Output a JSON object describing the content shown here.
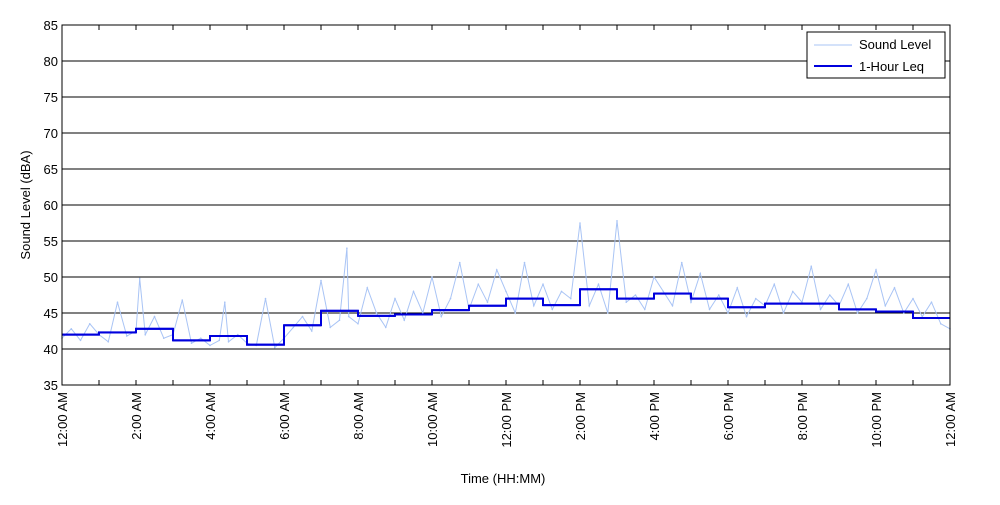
{
  "chart_data": {
    "type": "line",
    "title": "",
    "xlabel": "Time (HH:MM)",
    "ylabel": "Sound Level (dBA)",
    "ylim": [
      35,
      85
    ],
    "yticks": [
      35,
      40,
      45,
      50,
      55,
      60,
      65,
      70,
      75,
      80,
      85
    ],
    "xlim_hours": [
      0,
      24
    ],
    "xtick_labels": [
      "12:00 AM",
      "2:00 AM",
      "4:00 AM",
      "6:00 AM",
      "8:00 AM",
      "10:00 AM",
      "12:00 PM",
      "2:00 PM",
      "4:00 PM",
      "6:00 PM",
      "8:00 PM",
      "10:00 PM",
      "12:00 AM"
    ],
    "grid": "horizontal",
    "legend_position": "top-right",
    "series": [
      {
        "name": "Sound Level",
        "color": "#a9c4f5",
        "style": "thin-line",
        "x_hours": [
          0,
          0.25,
          0.5,
          0.75,
          1,
          1.25,
          1.5,
          1.75,
          2,
          2.1,
          2.25,
          2.5,
          2.75,
          3,
          3.25,
          3.5,
          3.75,
          4,
          4.25,
          4.4,
          4.5,
          4.75,
          5,
          5.25,
          5.5,
          5.75,
          6,
          6.25,
          6.5,
          6.75,
          7,
          7.25,
          7.5,
          7.7,
          7.75,
          8,
          8.25,
          8.5,
          8.75,
          9,
          9.25,
          9.5,
          9.75,
          10,
          10.25,
          10.5,
          10.75,
          11,
          11.25,
          11.5,
          11.75,
          12,
          12.25,
          12.5,
          12.75,
          13,
          13.25,
          13.5,
          13.75,
          14,
          14.25,
          14.5,
          14.75,
          15,
          15.25,
          15.5,
          15.75,
          16,
          16.25,
          16.5,
          16.75,
          17,
          17.25,
          17.5,
          17.75,
          18,
          18.25,
          18.5,
          18.75,
          19,
          19.25,
          19.5,
          19.75,
          20,
          20.25,
          20.5,
          20.75,
          21,
          21.25,
          21.5,
          21.75,
          22,
          22.25,
          22.5,
          22.75,
          23,
          23.25,
          23.5,
          23.75,
          24
        ],
        "values": [
          41.5,
          42.8,
          41.2,
          43.5,
          42.0,
          41.0,
          46.5,
          41.8,
          42.5,
          49.8,
          42.0,
          44.5,
          41.5,
          42.0,
          46.8,
          40.8,
          41.5,
          40.5,
          41.2,
          46.5,
          41.0,
          42.0,
          40.8,
          40.5,
          47.0,
          40.2,
          41.5,
          43.0,
          44.5,
          42.5,
          49.5,
          43.0,
          44.0,
          54.0,
          44.5,
          43.5,
          48.5,
          45.0,
          43.0,
          47.0,
          44.0,
          48.0,
          45.0,
          50.0,
          44.5,
          47.0,
          52.0,
          45.5,
          49.0,
          46.5,
          51.0,
          48.0,
          45.0,
          52.0,
          46.0,
          49.0,
          45.5,
          48.0,
          47.0,
          57.5,
          46.0,
          49.0,
          45.0,
          57.8,
          46.5,
          47.5,
          45.5,
          50.0,
          48.0,
          46.0,
          52.0,
          46.5,
          50.5,
          45.5,
          47.5,
          45.0,
          48.5,
          44.5,
          47.0,
          46.0,
          49.0,
          45.0,
          48.0,
          46.5,
          51.5,
          45.5,
          47.5,
          46.0,
          49.0,
          45.0,
          47.0,
          51.0,
          46.0,
          48.5,
          45.0,
          47.0,
          44.5,
          46.5,
          43.5,
          42.8
        ]
      },
      {
        "name": "1-Hour Leq",
        "color": "#0000dd",
        "style": "step",
        "x_hours": [
          0,
          1,
          2,
          3,
          4,
          5,
          6,
          7,
          8,
          9,
          10,
          11,
          12,
          13,
          14,
          15,
          16,
          17,
          18,
          19,
          20,
          21,
          22,
          23
        ],
        "values": [
          42.0,
          42.3,
          42.8,
          41.2,
          41.8,
          40.6,
          43.3,
          45.3,
          44.6,
          44.8,
          45.4,
          46.0,
          47.0,
          46.1,
          48.3,
          47.0,
          47.7,
          47.0,
          45.8,
          46.3,
          46.3,
          45.5,
          45.2,
          44.3
        ]
      }
    ]
  }
}
